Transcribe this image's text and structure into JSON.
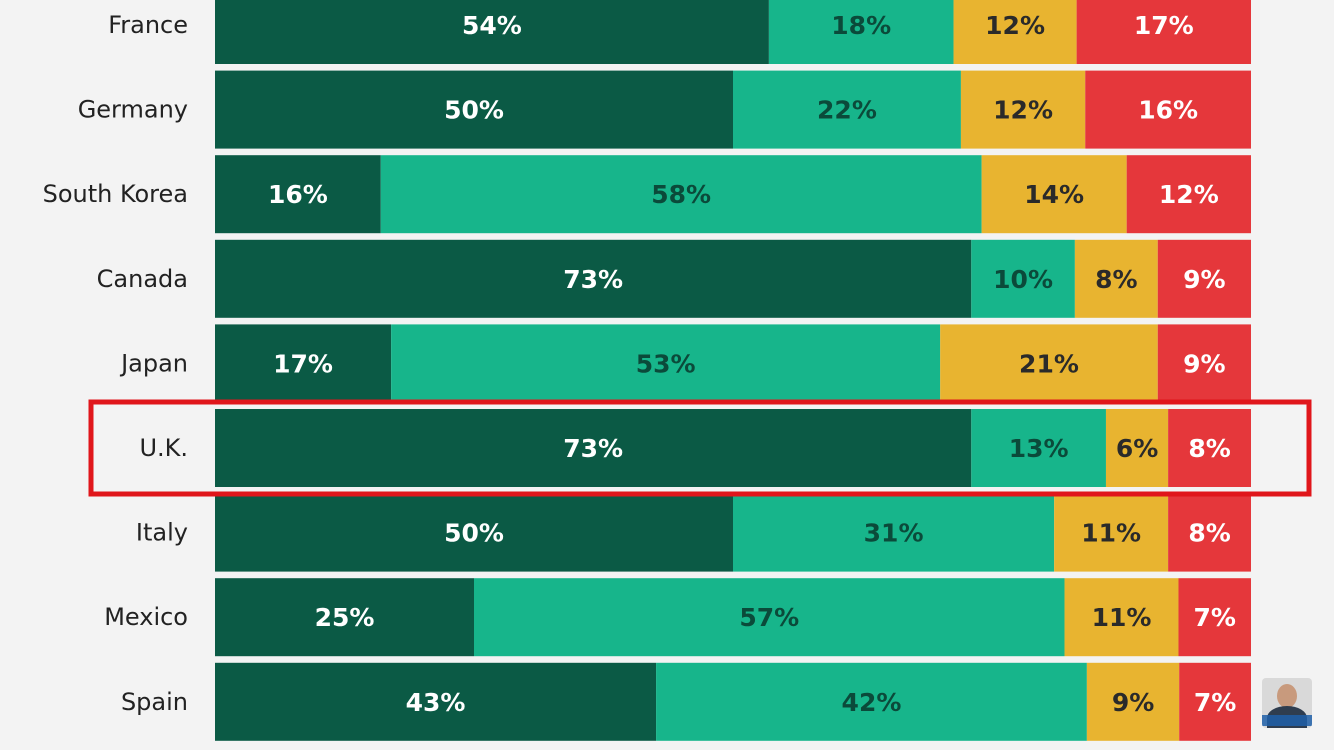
{
  "chart_data": {
    "type": "bar",
    "orientation": "horizontal",
    "stacked": true,
    "categories": [
      "France",
      "Germany",
      "South Korea",
      "Canada",
      "Japan",
      "U.K.",
      "Italy",
      "Mexico",
      "Spain"
    ],
    "series": [
      {
        "values": [
          54,
          50,
          16,
          73,
          17,
          73,
          50,
          25,
          43
        ],
        "color": "#0b5a45",
        "label_color": "#ffffff"
      },
      {
        "values": [
          18,
          22,
          58,
          10,
          53,
          13,
          31,
          57,
          42
        ],
        "color": "#17b58b",
        "label_color": "#0b4a3a"
      },
      {
        "values": [
          12,
          12,
          14,
          8,
          21,
          6,
          11,
          11,
          9
        ],
        "color": "#e8b430",
        "label_color": "#2a2a2a"
      },
      {
        "values": [
          17,
          16,
          12,
          9,
          9,
          8,
          8,
          7,
          7
        ],
        "color": "#e5373b",
        "label_color": "#ffffff"
      }
    ],
    "value_suffix": "%",
    "highlight": {
      "category": "U.K.",
      "color": "#e0161b"
    },
    "xlim": [
      0,
      100
    ]
  }
}
